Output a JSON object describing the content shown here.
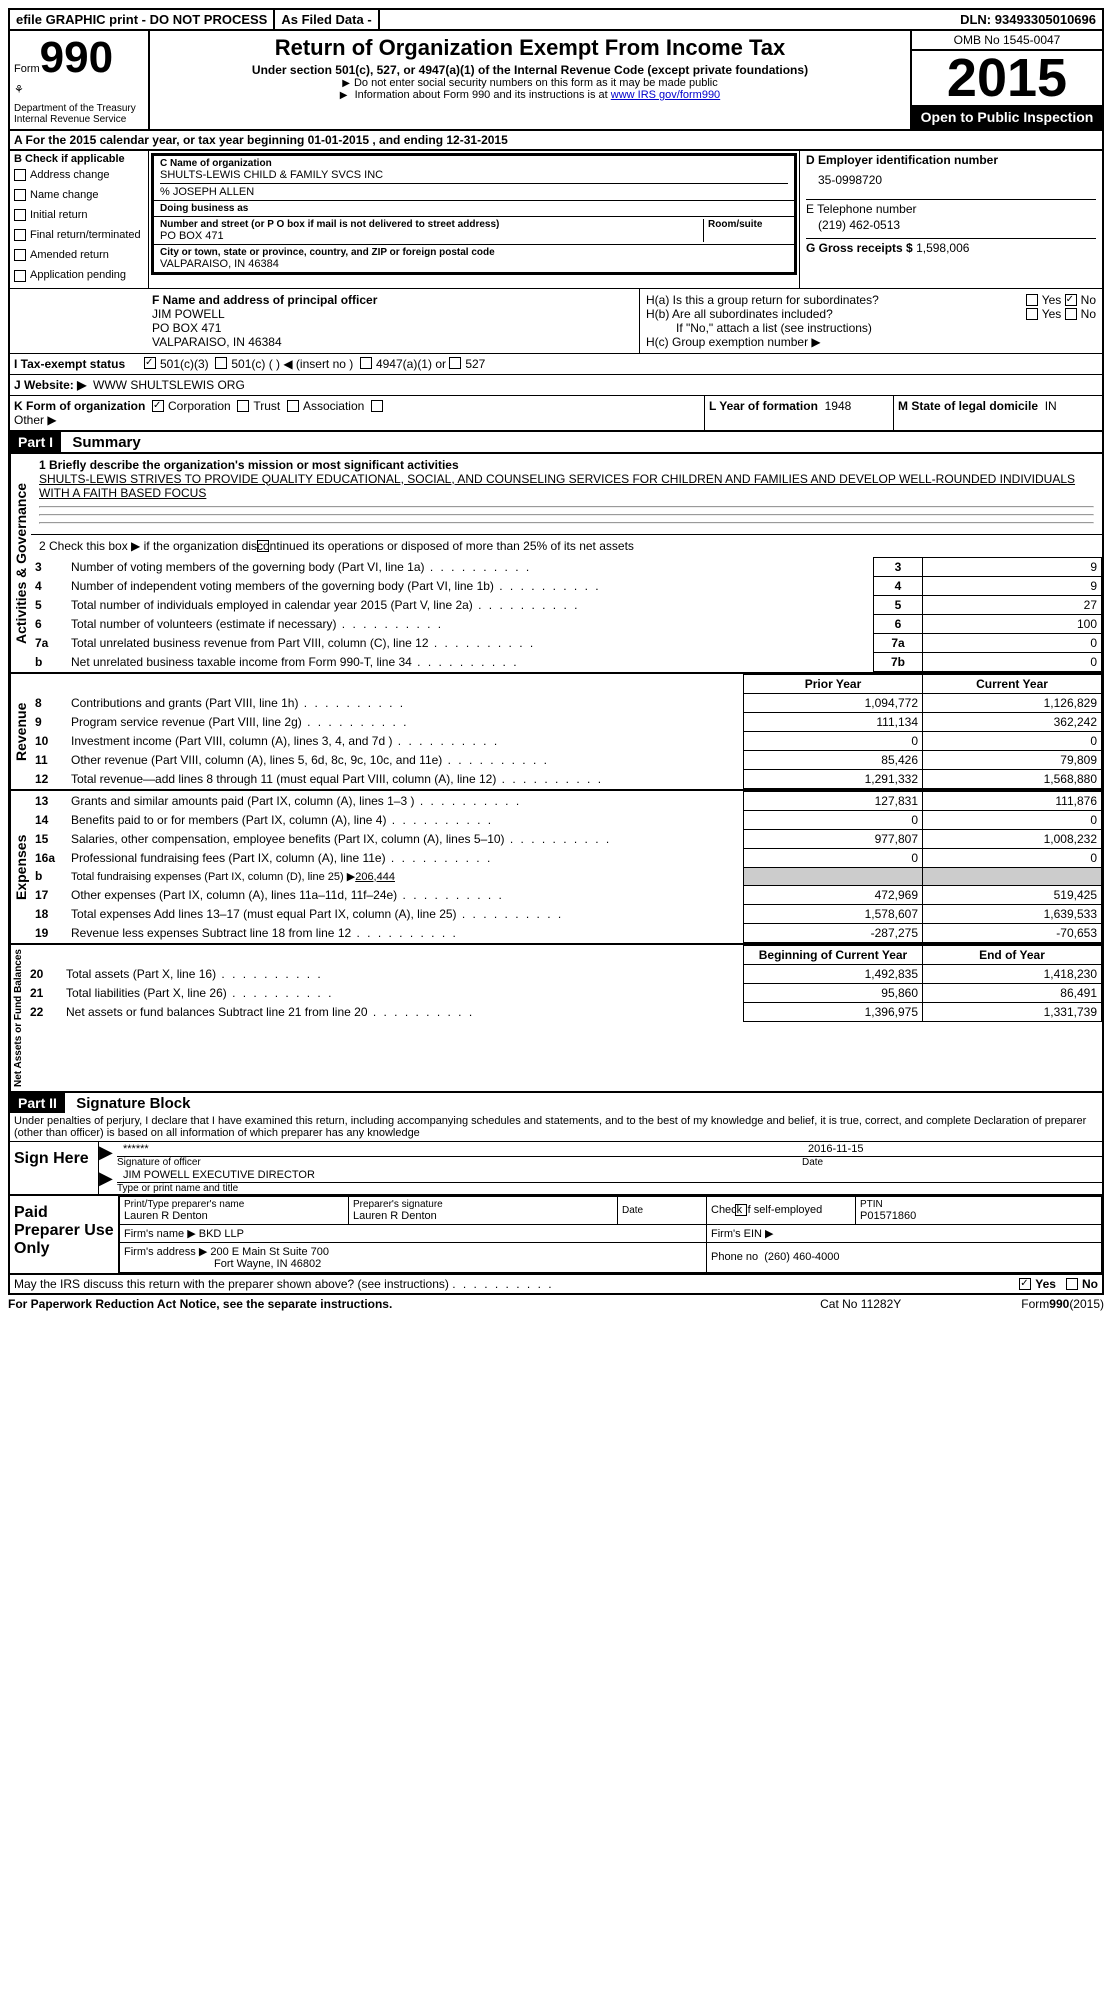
{
  "topbar": {
    "efile": "efile GRAPHIC print - DO NOT PROCESS",
    "asfiled": "As Filed Data -",
    "dln_label": "DLN:",
    "dln": "93493305010696"
  },
  "header": {
    "form_label": "Form",
    "form_num": "990",
    "dept1": "Department of the Treasury",
    "dept2": "Internal Revenue Service",
    "title": "Return of Organization Exempt From Income Tax",
    "subtitle": "Under section 501(c), 527, or 4947(a)(1) of the Internal Revenue Code (except private foundations)",
    "note1": "Do not enter social security numbers on this form as it may be made public",
    "note2": "Information about Form 990 and its instructions is at ",
    "note2_link": "www IRS gov/form990",
    "omb": "OMB No 1545-0047",
    "year": "2015",
    "open": "Open to Public Inspection"
  },
  "rowA": "A  For the 2015 calendar year, or tax year beginning 01-01-2015    , and ending 12-31-2015",
  "colB": {
    "label": "B Check if applicable",
    "items": [
      "Address change",
      "Name change",
      "Initial return",
      "Final return/terminated",
      "Amended return",
      "Application pending"
    ]
  },
  "colC": {
    "name_label": "C Name of organization",
    "name": "SHULTS-LEWIS CHILD & FAMILY SVCS INC",
    "care": "% JOSEPH ALLEN",
    "dba_label": "Doing business as",
    "street_label": "Number and street (or P O  box if mail is not delivered to street address)",
    "room_label": "Room/suite",
    "street": "PO BOX 471",
    "city_label": "City or town, state or province, country, and ZIP or foreign postal code",
    "city": "VALPARAISO, IN  46384"
  },
  "colD": {
    "ein_label": "D Employer identification number",
    "ein": "35-0998720",
    "phone_label": "E Telephone number",
    "phone": "(219) 462-0513",
    "gross_label": "G Gross receipts $",
    "gross": "1,598,006"
  },
  "F": {
    "label": "F  Name and address of principal officer",
    "name": "JIM POWELL",
    "addr1": "PO BOX 471",
    "addr2": "VALPARAISO, IN  46384"
  },
  "H": {
    "a": "H(a)  Is this a group return for subordinates?",
    "b": "H(b)  Are all subordinates included?",
    "b_note": "If \"No,\" attach a list  (see instructions)",
    "c": "H(c)   Group exemption number ▶",
    "yes": "Yes",
    "no": "No"
  },
  "I": {
    "label": "I  Tax-exempt status",
    "o1": "501(c)(3)",
    "o2": "501(c) (  ) ◀ (insert no )",
    "o3": "4947(a)(1) or",
    "o4": "527"
  },
  "J": {
    "label": "J  Website: ▶",
    "val": "WWW SHULTSLEWIS ORG"
  },
  "K": {
    "label": "K Form of organization",
    "opts": [
      "Corporation",
      "Trust",
      "Association"
    ],
    "other": "Other ▶"
  },
  "L": {
    "label": "L Year of formation",
    "val": "1948"
  },
  "M": {
    "label": "M State of legal domicile",
    "val": "IN"
  },
  "part1": {
    "hdr": "Part I",
    "title": "Summary",
    "q1_label": "1 Briefly describe the organization's mission or most significant activities",
    "q1_text": "SHULTS-LEWIS STRIVES TO PROVIDE QUALITY EDUCATIONAL, SOCIAL, AND COUNSELING SERVICES FOR CHILDREN AND FAMILIES AND DEVELOP WELL-ROUNDED INDIVIDUALS WITH A FAITH BASED FOCUS",
    "q2": "2  Check this box ▶       if the organization discontinued its operations or disposed of more than 25% of its net assets",
    "gov_rows": [
      {
        "n": "3",
        "d": "Number of voting members of the governing body (Part VI, line 1a)",
        "box": "3",
        "v": "9"
      },
      {
        "n": "4",
        "d": "Number of independent voting members of the governing body (Part VI, line 1b)",
        "box": "4",
        "v": "9"
      },
      {
        "n": "5",
        "d": "Total number of individuals employed in calendar year 2015 (Part V, line 2a)",
        "box": "5",
        "v": "27"
      },
      {
        "n": "6",
        "d": "Total number of volunteers (estimate if necessary)",
        "box": "6",
        "v": "100"
      },
      {
        "n": "7a",
        "d": "Total unrelated business revenue from Part VIII, column (C), line 12",
        "box": "7a",
        "v": "0"
      },
      {
        "n": "b",
        "d": "Net unrelated business taxable income from Form 990-T, line 34",
        "box": "7b",
        "v": "0"
      }
    ],
    "col_prior": "Prior Year",
    "col_curr": "Current Year",
    "rev_rows": [
      {
        "n": "8",
        "d": "Contributions and grants (Part VIII, line 1h)",
        "p": "1,094,772",
        "c": "1,126,829"
      },
      {
        "n": "9",
        "d": "Program service revenue (Part VIII, line 2g)",
        "p": "111,134",
        "c": "362,242"
      },
      {
        "n": "10",
        "d": "Investment income (Part VIII, column (A), lines 3, 4, and 7d )",
        "p": "0",
        "c": "0"
      },
      {
        "n": "11",
        "d": "Other revenue (Part VIII, column (A), lines 5, 6d, 8c, 9c, 10c, and 11e)",
        "p": "85,426",
        "c": "79,809"
      },
      {
        "n": "12",
        "d": "Total revenue—add lines 8 through 11 (must equal Part VIII, column (A), line 12)",
        "p": "1,291,332",
        "c": "1,568,880"
      }
    ],
    "exp_rows": [
      {
        "n": "13",
        "d": "Grants and similar amounts paid (Part IX, column (A), lines 1–3 )",
        "p": "127,831",
        "c": "111,876"
      },
      {
        "n": "14",
        "d": "Benefits paid to or for members (Part IX, column (A), line 4)",
        "p": "0",
        "c": "0"
      },
      {
        "n": "15",
        "d": "Salaries, other compensation, employee benefits (Part IX, column (A), lines 5–10)",
        "p": "977,807",
        "c": "1,008,232"
      },
      {
        "n": "16a",
        "d": "Professional fundraising fees (Part IX, column (A), line 11e)",
        "p": "0",
        "c": "0"
      }
    ],
    "exp_b": {
      "n": "b",
      "d": "Total fundraising expenses (Part IX, column (D), line 25) ▶",
      "v": "206,444"
    },
    "exp_rows2": [
      {
        "n": "17",
        "d": "Other expenses (Part IX, column (A), lines 11a–11d, 11f–24e)",
        "p": "472,969",
        "c": "519,425"
      },
      {
        "n": "18",
        "d": "Total expenses  Add lines 13–17 (must equal Part IX, column (A), line 25)",
        "p": "1,578,607",
        "c": "1,639,533"
      },
      {
        "n": "19",
        "d": "Revenue less expenses  Subtract line 18 from line 12",
        "p": "-287,275",
        "c": "-70,653"
      }
    ],
    "col_beg": "Beginning of Current Year",
    "col_end": "End of Year",
    "net_rows": [
      {
        "n": "20",
        "d": "Total assets (Part X, line 16)",
        "p": "1,492,835",
        "c": "1,418,230"
      },
      {
        "n": "21",
        "d": "Total liabilities (Part X, line 26)",
        "p": "95,860",
        "c": "86,491"
      },
      {
        "n": "22",
        "d": "Net assets or fund balances  Subtract line 21 from line 20",
        "p": "1,396,975",
        "c": "1,331,739"
      }
    ],
    "side_gov": "Activities & Governance",
    "side_rev": "Revenue",
    "side_exp": "Expenses",
    "side_net": "Net Assets or Fund Balances"
  },
  "part2": {
    "hdr": "Part II",
    "title": "Signature Block",
    "decl": "Under penalties of perjury, I declare that I have examined this return, including accompanying schedules and statements, and to the best of my knowledge and belief, it is true, correct, and complete  Declaration of preparer (other than officer) is based on all information of which preparer has any knowledge",
    "sign_here": "Sign Here",
    "sig_stars": "******",
    "sig_of_officer": "Signature of officer",
    "sig_date_label": "Date",
    "sig_date": "2016-11-15",
    "officer_name": "JIM POWELL EXECUTIVE DIRECTOR",
    "officer_type": "Type or print name and title",
    "paid": "Paid Preparer Use Only",
    "prep_name_label": "Print/Type preparer's name",
    "prep_name": "Lauren R Denton",
    "prep_sig_label": "Preparer's signature",
    "prep_sig": "Lauren R Denton",
    "prep_date_label": "Date",
    "self_emp": "Check         if self-employed",
    "ptin_label": "PTIN",
    "ptin": "P01571860",
    "firm_name_label": "Firm's name    ▶",
    "firm_name": "BKD LLP",
    "firm_ein_label": "Firm's EIN ▶",
    "firm_addr_label": "Firm's address ▶",
    "firm_addr1": "200 E Main St Suite 700",
    "firm_addr2": "Fort Wayne, IN  46802",
    "firm_phone_label": "Phone no",
    "firm_phone": "(260) 460-4000"
  },
  "footer": {
    "discuss": "May the IRS discuss this return with the preparer shown above? (see instructions)",
    "yes": "Yes",
    "no": "No",
    "paperwork": "For Paperwork Reduction Act Notice, see the separate instructions.",
    "cat": "Cat No 11282Y",
    "form": "Form",
    "formno": "990",
    "formyr": "(2015)"
  }
}
